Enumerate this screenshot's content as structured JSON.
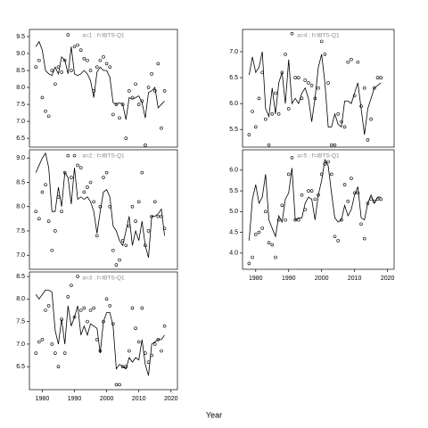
{
  "xlabel": "Year",
  "chart_data": [
    {
      "type": "line",
      "title": "a=1 : f=IBTS-Q1",
      "x": [
        1978,
        1979,
        1980,
        1981,
        1982,
        1983,
        1984,
        1985,
        1986,
        1987,
        1988,
        1989,
        1990,
        1991,
        1992,
        1993,
        1994,
        1995,
        1996,
        1997,
        1998,
        1999,
        2000,
        2001,
        2002,
        2003,
        2004,
        2005,
        2006,
        2007,
        2008,
        2009,
        2010,
        2011,
        2012,
        2013,
        2014,
        2015,
        2016,
        2017,
        2018
      ],
      "series": [
        {
          "mode": "points",
          "color": "#000000",
          "values": [
            8.6,
            8.8,
            7.7,
            7.3,
            7.15,
            8.5,
            8.1,
            8.6,
            8.45,
            8.8,
            9.55,
            8.5,
            9.2,
            9.25,
            9.1,
            8.85,
            8.8,
            8.5,
            7.9,
            8.6,
            8.8,
            8.9,
            8.7,
            8.6,
            7.2,
            7.5,
            7.1,
            7.5,
            6.5,
            7.9,
            7.7,
            8.1,
            7.5,
            7.6,
            6.3,
            8.0,
            8.4,
            7.9,
            8.7,
            6.8,
            7.9
          ]
        },
        {
          "mode": "line",
          "color": "#000000",
          "values": [
            9.2,
            9.35,
            9.1,
            8.5,
            8.4,
            8.35,
            8.6,
            8.4,
            8.9,
            8.8,
            8.4,
            9.2,
            8.4,
            8.35,
            8.4,
            8.5,
            8.4,
            8.2,
            7.7,
            8.45,
            8.6,
            8.5,
            8.5,
            8.3,
            7.55,
            7.5,
            7.55,
            7.5,
            7.05,
            7.7,
            7.65,
            7.7,
            7.75,
            7.55,
            7.1,
            7.85,
            7.9,
            8.0,
            7.4,
            7.5,
            7.6
          ]
        }
      ],
      "xlim": [
        1976,
        2022
      ],
      "ylim": [
        6.24,
        9.71
      ],
      "yticks": [
        6.5,
        {
          "value": 7,
          "label": "7.0"
        },
        7.5,
        {
          "value": 8,
          "label": "8.0"
        },
        8.5,
        {
          "value": 9,
          "label": "9.0"
        },
        9.5
      ]
    },
    {
      "type": "line",
      "title": "a=2 : f=IBTS-Q1",
      "x": [
        1978,
        1979,
        1980,
        1981,
        1982,
        1983,
        1984,
        1985,
        1986,
        1987,
        1988,
        1989,
        1990,
        1991,
        1992,
        1993,
        1994,
        1995,
        1996,
        1997,
        1998,
        1999,
        2000,
        2001,
        2002,
        2003,
        2004,
        2005,
        2006,
        2007,
        2008,
        2009,
        2010,
        2011,
        2012,
        2013,
        2014,
        2015,
        2016,
        2017,
        2018
      ],
      "series": [
        {
          "mode": "points",
          "color": "#000000",
          "values": [
            7.9,
            7.75,
            8.3,
            8.45,
            7.7,
            7.1,
            7.5,
            8.2,
            7.9,
            8.7,
            9.05,
            8.6,
            9.05,
            8.85,
            8.8,
            8.3,
            8.4,
            8.5,
            8.1,
            7.4,
            8.0,
            8.6,
            8.7,
            8.0,
            7.1,
            6.8,
            6.9,
            7.3,
            7.2,
            7.6,
            8.0,
            7.7,
            8.1,
            8.7,
            7.2,
            7.5,
            7.8,
            8.1,
            7.8,
            7.8,
            7.55
          ]
        },
        {
          "mode": "line",
          "color": "#000000",
          "values": [
            8.7,
            8.85,
            9.0,
            9.1,
            8.8,
            7.9,
            7.9,
            8.4,
            8.0,
            8.7,
            8.6,
            8.05,
            8.8,
            8.15,
            8.2,
            8.15,
            8.2,
            8.1,
            7.9,
            7.45,
            7.9,
            8.3,
            8.35,
            8.2,
            7.6,
            7.5,
            7.3,
            7.2,
            7.5,
            7.8,
            7.2,
            7.5,
            7.3,
            7.7,
            7.2,
            6.95,
            7.8,
            7.8,
            7.85,
            7.95,
            7.4
          ]
        }
      ],
      "xlim": [
        1976,
        2022
      ],
      "ylim": [
        6.71,
        9.17
      ],
      "yticks": [
        {
          "value": 7,
          "label": "7.0"
        },
        7.5,
        {
          "value": 8,
          "label": "8.0"
        },
        8.5,
        {
          "value": 9,
          "label": "9.0"
        }
      ]
    },
    {
      "type": "line",
      "title": "a=3 : f=IBTS-Q1",
      "x": [
        1978,
        1979,
        1980,
        1981,
        1982,
        1983,
        1984,
        1985,
        1986,
        1987,
        1988,
        1989,
        1990,
        1991,
        1992,
        1993,
        1994,
        1995,
        1996,
        1997,
        1998,
        1999,
        2000,
        2001,
        2002,
        2003,
        2004,
        2005,
        2006,
        2007,
        2008,
        2009,
        2010,
        2011,
        2012,
        2013,
        2014,
        2015,
        2016,
        2017,
        2018
      ],
      "series": [
        {
          "mode": "points",
          "color": "#000000",
          "values": [
            6.8,
            7.05,
            7.1,
            7.75,
            7.85,
            7.0,
            6.8,
            6.5,
            7.55,
            6.8,
            8.05,
            8.3,
            7.6,
            8.5,
            7.75,
            7.8,
            7.5,
            7.75,
            7.8,
            7.1,
            6.85,
            7.5,
            8.0,
            7.85,
            7.45,
            6.1,
            6.1,
            6.5,
            6.5,
            6.85,
            7.8,
            7.35,
            7.05,
            7.8,
            6.8,
            6.6,
            6.75,
            7.0,
            7.1,
            6.85,
            7.4
          ]
        },
        {
          "mode": "line",
          "color": "#000000",
          "values": [
            8.1,
            8.0,
            8.1,
            8.2,
            8.2,
            8.15,
            7.3,
            7.0,
            7.55,
            7.0,
            7.85,
            7.4,
            7.6,
            7.85,
            7.2,
            7.4,
            7.2,
            7.45,
            7.4,
            7.35,
            6.8,
            7.5,
            7.7,
            7.7,
            7.4,
            6.45,
            6.55,
            6.5,
            6.45,
            6.7,
            6.6,
            6.7,
            6.65,
            7.1,
            6.55,
            6.3,
            7.0,
            7.05,
            7.1,
            7.1,
            7.2
          ]
        }
      ],
      "xlim": [
        1976,
        2022
      ],
      "ylim": [
        5.99,
        8.6
      ],
      "xticks": [
        1980,
        1990,
        2000,
        2010,
        2020
      ],
      "yticks": [
        6.5,
        {
          "value": 7,
          "label": "7.0"
        },
        7.5,
        {
          "value": 8,
          "label": "8.0"
        },
        8.5
      ]
    },
    {
      "type": "line",
      "title": "a=4 : f=IBTS-Q1",
      "x": [
        1978,
        1979,
        1980,
        1981,
        1982,
        1983,
        1984,
        1985,
        1986,
        1987,
        1988,
        1989,
        1990,
        1991,
        1992,
        1993,
        1994,
        1995,
        1996,
        1997,
        1998,
        1999,
        2000,
        2001,
        2002,
        2003,
        2004,
        2005,
        2006,
        2007,
        2008,
        2009,
        2010,
        2011,
        2012,
        2013,
        2014,
        2015,
        2016,
        2017,
        2018
      ],
      "series": [
        {
          "mode": "points",
          "color": "#000000",
          "values": [
            5.4,
            5.85,
            5.55,
            6.1,
            6.6,
            5.7,
            5.2,
            5.8,
            6.2,
            5.8,
            6.6,
            6.95,
            5.9,
            7.35,
            6.5,
            6.5,
            6.1,
            6.45,
            6.4,
            6.35,
            6.1,
            6.3,
            7.2,
            6.95,
            6.4,
            5.2,
            5.2,
            5.8,
            5.65,
            5.55,
            6.8,
            6.85,
            6.15,
            6.8,
            5.95,
            6.3,
            5.3,
            5.7,
            6.3,
            6.5,
            6.5
          ]
        },
        {
          "mode": "line",
          "color": "#000000",
          "values": [
            6.55,
            6.9,
            6.6,
            6.7,
            7.0,
            5.9,
            5.75,
            6.3,
            5.8,
            6.4,
            6.6,
            6.0,
            6.85,
            6.0,
            6.1,
            6.0,
            6.2,
            6.3,
            6.1,
            5.65,
            6.1,
            6.7,
            6.95,
            6.4,
            5.55,
            5.55,
            5.8,
            5.6,
            5.55,
            6.05,
            6.05,
            6.0,
            6.2,
            6.4,
            5.9,
            5.4,
            5.9,
            6.1,
            6.3,
            6.35,
            6.4
          ]
        }
      ],
      "xlim": [
        1976,
        2022
      ],
      "ylim": [
        5.16,
        7.43
      ],
      "yticks": [
        5.5,
        {
          "value": 6,
          "label": "6.0"
        },
        6.5,
        {
          "value": 7,
          "label": "7.0"
        }
      ]
    },
    {
      "type": "line",
      "title": "a=5 : f=IBTS-Q1",
      "x": [
        1978,
        1979,
        1980,
        1981,
        1982,
        1983,
        1984,
        1985,
        1986,
        1987,
        1988,
        1989,
        1990,
        1991,
        1992,
        1993,
        1994,
        1995,
        1996,
        1997,
        1998,
        1999,
        2000,
        2001,
        2002,
        2003,
        2004,
        2005,
        2006,
        2007,
        2008,
        2009,
        2010,
        2011,
        2012,
        2013,
        2014,
        2015,
        2016,
        2017,
        2018
      ],
      "series": [
        {
          "mode": "points",
          "color": "#000000",
          "values": [
            3.75,
            3.9,
            4.45,
            4.5,
            4.6,
            5.0,
            4.25,
            4.2,
            3.9,
            4.8,
            5.15,
            4.8,
            5.9,
            6.3,
            4.8,
            4.8,
            5.4,
            5.05,
            5.5,
            5.5,
            5.3,
            5.4,
            5.9,
            6.15,
            6.2,
            5.9,
            4.4,
            4.3,
            4.8,
            5.65,
            5.25,
            5.8,
            5.45,
            5.45,
            4.7,
            4.35,
            5.2,
            5.3,
            5.25,
            5.3,
            5.3
          ]
        },
        {
          "mode": "line",
          "color": "#000000",
          "values": [
            4.3,
            5.3,
            5.65,
            5.2,
            5.35,
            5.9,
            4.8,
            4.6,
            4.4,
            4.9,
            4.75,
            5.3,
            5.45,
            6.05,
            4.8,
            4.85,
            4.85,
            5.2,
            5.35,
            5.3,
            4.8,
            5.4,
            5.75,
            6.25,
            6.1,
            5.45,
            4.85,
            4.75,
            4.8,
            5.15,
            4.9,
            5.05,
            5.4,
            5.6,
            4.85,
            4.8,
            5.2,
            5.4,
            5.2,
            5.35,
            5.35
          ]
        }
      ],
      "xlim": [
        1976,
        2022
      ],
      "ylim": [
        3.61,
        6.49
      ],
      "xticks": [
        1980,
        1990,
        2000,
        2010,
        2020
      ],
      "yticks": [
        {
          "value": 4,
          "label": "4.0"
        },
        4.5,
        {
          "value": 5,
          "label": "5.0"
        },
        5.5,
        {
          "value": 6,
          "label": "6.0"
        }
      ]
    }
  ]
}
